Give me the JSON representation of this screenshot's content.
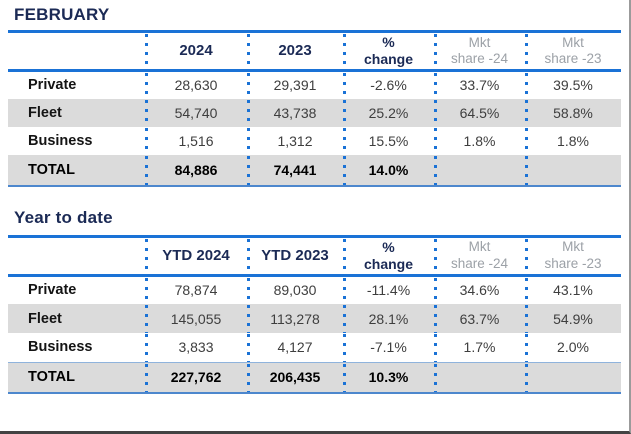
{
  "colors": {
    "accent_blue": "#1a72d6",
    "navy_heading": "#1b2a55",
    "header_gray": "#9ca1a7",
    "band_gray": "#dbdbdb",
    "value_gray": "#3e3e3e"
  },
  "february": {
    "title": "FEBRUARY",
    "columns": [
      "",
      "2024",
      "2023",
      "%\nchange",
      "Mkt\nshare -24",
      "Mkt\nshare -23"
    ],
    "rows": [
      {
        "label": "Private",
        "values": [
          "28,630",
          "29,391",
          "-2.6%",
          "33.7%",
          "39.5%"
        ]
      },
      {
        "label": "Fleet",
        "values": [
          "54,740",
          "43,738",
          "25.2%",
          "64.5%",
          "58.8%"
        ]
      },
      {
        "label": "Business",
        "values": [
          "1,516",
          "1,312",
          "15.5%",
          "1.8%",
          "1.8%"
        ]
      },
      {
        "label": "TOTAL",
        "values": [
          "84,886",
          "74,441",
          "14.0%",
          "",
          ""
        ]
      }
    ]
  },
  "year_to_date": {
    "title": "Year to date",
    "columns": [
      "",
      "YTD 2024",
      "YTD 2023",
      "%\nchange",
      "Mkt\nshare -24",
      "Mkt\nshare -23"
    ],
    "rows": [
      {
        "label": "Private",
        "values": [
          "78,874",
          "89,030",
          "-11.4%",
          "34.6%",
          "43.1%"
        ]
      },
      {
        "label": "Fleet",
        "values": [
          "145,055",
          "113,278",
          "28.1%",
          "63.7%",
          "54.9%"
        ]
      },
      {
        "label": "Business",
        "values": [
          "3,833",
          "4,127",
          "-7.1%",
          "1.7%",
          "2.0%"
        ]
      },
      {
        "label": "TOTAL",
        "values": [
          "227,762",
          "206,435",
          "10.3%",
          "",
          ""
        ]
      }
    ]
  }
}
